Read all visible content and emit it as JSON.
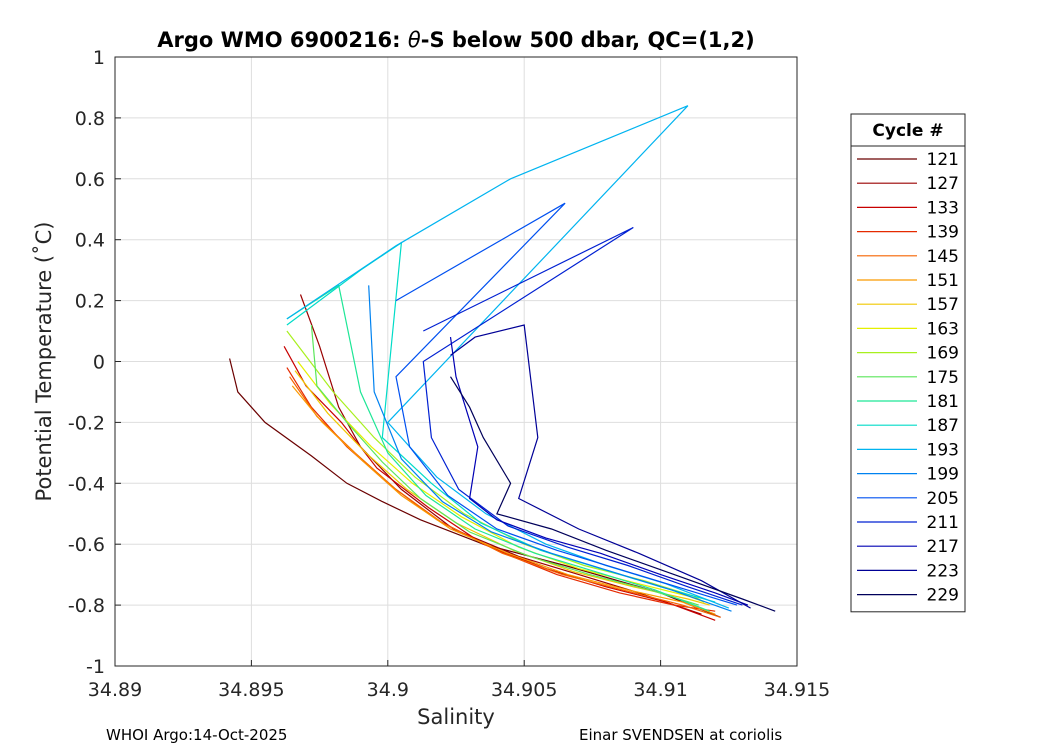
{
  "chart_data": {
    "type": "line",
    "title_parts": [
      "Argo WMO 6900216: ",
      "θ",
      "-S below 500 dbar,  QC=(1,2)"
    ],
    "xlabel": "Salinity",
    "ylabel": "Potential Temperature (˚C)",
    "xlim": [
      34.89,
      34.915
    ],
    "ylim": [
      -1,
      1
    ],
    "xticks": [
      34.89,
      34.895,
      34.9,
      34.905,
      34.91,
      34.915
    ],
    "xtick_labels": [
      "34.89",
      "34.895",
      "34.9",
      "34.905",
      "34.91",
      "34.915"
    ],
    "yticks": [
      -1,
      -0.8,
      -0.6,
      -0.4,
      -0.2,
      0,
      0.2,
      0.4,
      0.6,
      0.8,
      1
    ],
    "ytick_labels": [
      "-1",
      "-0.8",
      "-0.6",
      "-0.4",
      "-0.2",
      "0",
      "0.2",
      "0.4",
      "0.6",
      "0.8",
      "1"
    ],
    "grid": true,
    "legend": {
      "title": "Cycle #",
      "placement": "outside-right",
      "entries": [
        {
          "label": "121",
          "color": "#6b0000"
        },
        {
          "label": "127",
          "color": "#9a0000"
        },
        {
          "label": "133",
          "color": "#c80000"
        },
        {
          "label": "139",
          "color": "#e52a00"
        },
        {
          "label": "145",
          "color": "#f56400"
        },
        {
          "label": "151",
          "color": "#fb9a00"
        },
        {
          "label": "157",
          "color": "#f0c800"
        },
        {
          "label": "163",
          "color": "#e5f000"
        },
        {
          "label": "169",
          "color": "#a8f01e"
        },
        {
          "label": "175",
          "color": "#5ae65a"
        },
        {
          "label": "181",
          "color": "#1ee696"
        },
        {
          "label": "187",
          "color": "#00dcc8"
        },
        {
          "label": "193",
          "color": "#00b4f0"
        },
        {
          "label": "199",
          "color": "#0082f0"
        },
        {
          "label": "205",
          "color": "#0050f0"
        },
        {
          "label": "211",
          "color": "#0020d2"
        },
        {
          "label": "217",
          "color": "#0000b4"
        },
        {
          "label": "223",
          "color": "#000096"
        },
        {
          "label": "229",
          "color": "#00005a"
        }
      ]
    },
    "series": [
      {
        "cycle": "121",
        "x": [
          34.8942,
          34.8945,
          34.8955,
          34.8972,
          34.8985,
          34.8998,
          34.9012,
          34.9035,
          34.9065,
          34.91,
          34.9122
        ],
        "y": [
          0.01,
          -0.1,
          -0.2,
          -0.31,
          -0.4,
          -0.46,
          -0.52,
          -0.6,
          -0.67,
          -0.76,
          -0.84
        ]
      },
      {
        "cycle": "127",
        "x": [
          34.8968,
          34.8975,
          34.8982,
          34.899,
          34.9005,
          34.9024,
          34.9048,
          34.907,
          34.9092,
          34.9115
        ],
        "y": [
          0.22,
          0.05,
          -0.15,
          -0.28,
          -0.42,
          -0.55,
          -0.64,
          -0.7,
          -0.76,
          -0.83
        ]
      },
      {
        "cycle": "133",
        "x": [
          34.8962,
          34.897,
          34.8983,
          34.8996,
          34.9015,
          34.9035,
          34.9058,
          34.908,
          34.9102,
          34.912
        ],
        "y": [
          0.05,
          -0.08,
          -0.2,
          -0.35,
          -0.48,
          -0.6,
          -0.68,
          -0.74,
          -0.79,
          -0.85
        ]
      },
      {
        "cycle": "139",
        "x": [
          34.8963,
          34.8972,
          34.8985,
          34.9,
          34.9018,
          34.904,
          34.9062,
          34.9085,
          34.9105,
          34.912
        ],
        "y": [
          -0.02,
          -0.15,
          -0.28,
          -0.4,
          -0.52,
          -0.62,
          -0.7,
          -0.76,
          -0.8,
          -0.82
        ]
      },
      {
        "cycle": "145",
        "x": [
          34.8964,
          34.8974,
          34.8988,
          34.9003,
          34.902,
          34.9042,
          34.9064,
          34.9086,
          34.9108,
          34.9122
        ],
        "y": [
          -0.05,
          -0.18,
          -0.3,
          -0.42,
          -0.53,
          -0.63,
          -0.7,
          -0.75,
          -0.8,
          -0.84
        ]
      },
      {
        "cycle": "151",
        "x": [
          34.8965,
          34.8976,
          34.899,
          34.9005,
          34.9023,
          34.9044,
          34.9066,
          34.9088,
          34.9108,
          34.912
        ],
        "y": [
          -0.08,
          -0.2,
          -0.32,
          -0.44,
          -0.55,
          -0.63,
          -0.7,
          -0.75,
          -0.79,
          -0.83
        ]
      },
      {
        "cycle": "157",
        "x": [
          34.8966,
          34.8978,
          34.8992,
          34.9007,
          34.9025,
          34.9046,
          34.9068,
          34.909,
          34.911,
          34.9118
        ],
        "y": [
          -0.03,
          -0.17,
          -0.3,
          -0.42,
          -0.53,
          -0.62,
          -0.69,
          -0.74,
          -0.78,
          -0.8
        ]
      },
      {
        "cycle": "163",
        "x": [
          34.8967,
          34.8979,
          34.8994,
          34.9009,
          34.9027,
          34.9048,
          34.907,
          34.9092,
          34.911,
          34.9116
        ],
        "y": [
          0.0,
          -0.14,
          -0.28,
          -0.4,
          -0.51,
          -0.61,
          -0.68,
          -0.73,
          -0.77,
          -0.79
        ]
      },
      {
        "cycle": "169",
        "x": [
          34.8963,
          34.898,
          34.8995,
          34.901,
          34.9028,
          34.905,
          34.9072,
          34.9094,
          34.9112,
          34.9116
        ],
        "y": [
          0.1,
          -0.1,
          -0.25,
          -0.38,
          -0.5,
          -0.6,
          -0.67,
          -0.72,
          -0.77,
          -0.79
        ]
      },
      {
        "cycle": "175",
        "x": [
          34.8972,
          34.8974,
          34.8985,
          34.8998,
          34.9012,
          34.903,
          34.9052,
          34.9074,
          34.9096,
          34.9114
        ],
        "y": [
          0.12,
          -0.08,
          -0.2,
          -0.33,
          -0.45,
          -0.56,
          -0.64,
          -0.7,
          -0.75,
          -0.8
        ]
      },
      {
        "cycle": "181",
        "x": [
          34.8963,
          34.8982,
          34.899,
          34.9,
          34.9014,
          34.9032,
          34.9054,
          34.9076,
          34.9098,
          34.9118
        ],
        "y": [
          0.14,
          0.25,
          -0.1,
          -0.3,
          -0.44,
          -0.55,
          -0.63,
          -0.69,
          -0.75,
          -0.82
        ]
      },
      {
        "cycle": "187",
        "x": [
          34.8963,
          34.899,
          34.9005,
          34.8998,
          34.9016,
          34.9034,
          34.9056,
          34.9078,
          34.91,
          34.912
        ],
        "y": [
          0.12,
          0.3,
          0.39,
          -0.25,
          -0.4,
          -0.53,
          -0.62,
          -0.68,
          -0.74,
          -0.79
        ]
      },
      {
        "cycle": "193",
        "x": [
          34.8963,
          34.9003,
          34.9045,
          34.911,
          34.9,
          34.9018,
          34.9036,
          34.9058,
          34.908,
          34.9102,
          34.9125
        ],
        "y": [
          0.14,
          0.38,
          0.6,
          0.84,
          -0.2,
          -0.38,
          -0.5,
          -0.6,
          -0.67,
          -0.73,
          -0.81
        ]
      },
      {
        "cycle": "199",
        "x": [
          34.8993,
          34.8995,
          34.9005,
          34.902,
          34.9038,
          34.906,
          34.9082,
          34.9104,
          34.9126
        ],
        "y": [
          0.25,
          -0.1,
          -0.32,
          -0.46,
          -0.56,
          -0.63,
          -0.69,
          -0.75,
          -0.82
        ]
      },
      {
        "cycle": "205",
        "x": [
          34.9003,
          34.9065,
          34.9003,
          34.9008,
          34.9022,
          34.904,
          34.9062,
          34.9084,
          34.9106,
          34.9128
        ],
        "y": [
          0.2,
          0.52,
          -0.05,
          -0.28,
          -0.44,
          -0.55,
          -0.62,
          -0.68,
          -0.74,
          -0.8
        ]
      },
      {
        "cycle": "211",
        "x": [
          34.9013,
          34.909,
          34.9013,
          34.9016,
          34.9026,
          34.9044,
          34.9066,
          34.9088,
          34.911,
          34.913
        ],
        "y": [
          0.1,
          0.44,
          0.0,
          -0.25,
          -0.42,
          -0.54,
          -0.61,
          -0.67,
          -0.74,
          -0.8
        ]
      },
      {
        "cycle": "217",
        "x": [
          34.9023,
          34.9025,
          34.9033,
          34.903,
          34.904,
          34.9058,
          34.9078,
          34.91,
          34.912,
          34.9132
        ],
        "y": [
          0.08,
          -0.05,
          -0.28,
          -0.45,
          -0.52,
          -0.58,
          -0.63,
          -0.7,
          -0.76,
          -0.8
        ]
      },
      {
        "cycle": "223",
        "x": [
          34.9023,
          34.9032,
          34.905,
          34.9055,
          34.9048,
          34.907,
          34.9092,
          34.9115,
          34.9133
        ],
        "y": [
          0.02,
          0.08,
          0.12,
          -0.25,
          -0.45,
          -0.55,
          -0.63,
          -0.72,
          -0.81
        ]
      },
      {
        "cycle": "229",
        "x": [
          34.9023,
          34.903,
          34.9035,
          34.9045,
          34.904,
          34.906,
          34.908,
          34.9105,
          34.913,
          34.9142
        ],
        "y": [
          -0.05,
          -0.15,
          -0.25,
          -0.4,
          -0.5,
          -0.55,
          -0.62,
          -0.7,
          -0.78,
          -0.82
        ]
      }
    ]
  },
  "footer": {
    "left": "WHOI Argo:14-Oct-2025",
    "right": "Einar SVENDSEN at coriolis"
  }
}
